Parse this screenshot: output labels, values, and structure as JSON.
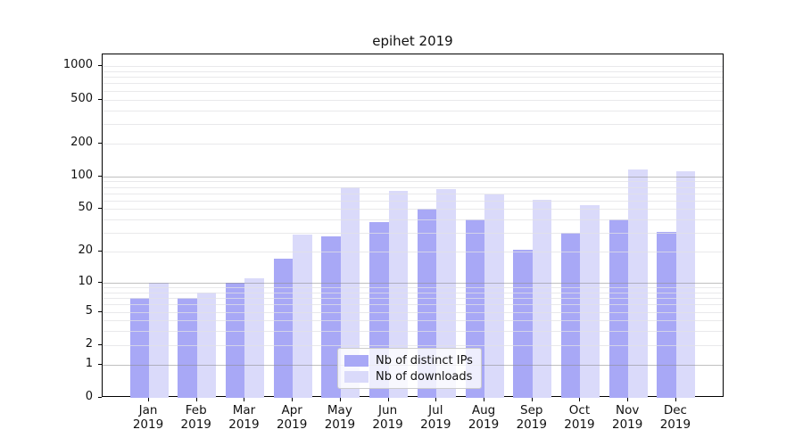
{
  "figure": {
    "title": "epihet 2019"
  },
  "chart_data": {
    "type": "bar",
    "title": "epihet 2019",
    "xlabel": "",
    "ylabel": "",
    "categories": [
      "Jan 2019",
      "Feb 2019",
      "Mar 2019",
      "Apr 2019",
      "May 2019",
      "Jun 2019",
      "Jul 2019",
      "Aug 2019",
      "Sep 2019",
      "Oct 2019",
      "Nov 2019",
      "Dec 2019"
    ],
    "series": [
      {
        "name": "Nb of distinct IPs",
        "color": "#a8a8f6",
        "values": [
          7,
          7,
          10,
          17,
          28,
          38,
          50,
          40,
          21,
          30,
          40,
          31
        ]
      },
      {
        "name": "Nb of downloads",
        "color": "#dadafa",
        "values": [
          10,
          8,
          11,
          29,
          79,
          74,
          77,
          68,
          61,
          54,
          115,
          111
        ]
      }
    ],
    "yscale": "log1p",
    "ylim": [
      0,
      1280
    ],
    "y_ticks": [
      0,
      1,
      2,
      5,
      10,
      20,
      50,
      100,
      200,
      500,
      1000
    ],
    "major_gridline_values": [
      1,
      10,
      100
    ],
    "minor_gridline_values": [
      2,
      3,
      4,
      5,
      6,
      7,
      8,
      9,
      20,
      30,
      40,
      50,
      60,
      70,
      80,
      90,
      200,
      300,
      400,
      500,
      600,
      700,
      800,
      900,
      1000
    ],
    "grid": "horizontal major+minor, drawn over bars",
    "legend_position": "inside lower-center"
  },
  "colors": {
    "bar_distinct_ips": "#a8a8f6",
    "bar_downloads": "#dadafa",
    "major_grid": "#8c8c8c",
    "minor_grid": "#e1e1e4",
    "spine": "#000000",
    "background": "#ffffff",
    "text": "#111111"
  }
}
